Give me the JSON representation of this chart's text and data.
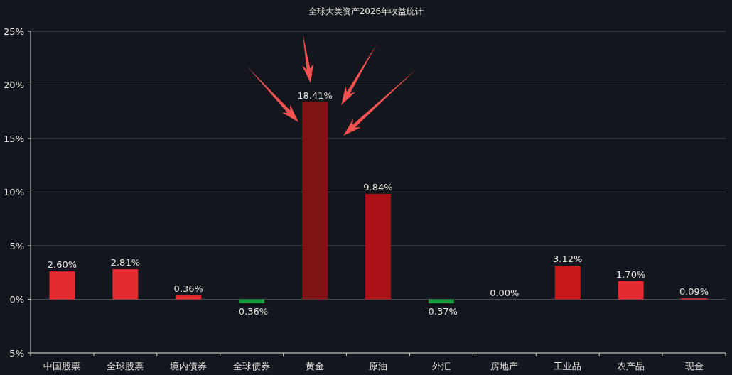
{
  "chart_data": {
    "type": "bar",
    "title": "全球大类资产2026年收益统计",
    "categories": [
      "中国股票",
      "全球股票",
      "境内债券",
      "全球债券",
      "黄金",
      "原油",
      "外汇",
      "房地产",
      "工业品",
      "农产品",
      "现金"
    ],
    "values": [
      2.6,
      2.81,
      0.36,
      -0.36,
      18.41,
      9.84,
      -0.37,
      0.0,
      3.12,
      1.7,
      0.09
    ],
    "colors": [
      "#e32b30",
      "#e32b30",
      "#e32b30",
      "#1a9a40",
      "#7f1215",
      "#ad1218",
      "#1a9a40",
      "#e32b30",
      "#c8181a",
      "#e32b30",
      "#e32b30"
    ],
    "value_labels": [
      "2.60%",
      "2.81%",
      "0.36%",
      "-0.36%",
      "18.41%",
      "9.84%",
      "-0.37%",
      "0.00%",
      "3.12%",
      "1.70%",
      "0.09%"
    ],
    "ylim": [
      -5,
      25
    ],
    "yticks": [
      {
        "value": -5,
        "label": "-5%"
      },
      {
        "value": 0,
        "label": "0%"
      },
      {
        "value": 5,
        "label": "5%"
      },
      {
        "value": 10,
        "label": "10%"
      },
      {
        "value": 15,
        "label": "15%"
      },
      {
        "value": 20,
        "label": "20%"
      },
      {
        "value": 25,
        "label": "25%"
      }
    ],
    "grid": "y"
  }
}
